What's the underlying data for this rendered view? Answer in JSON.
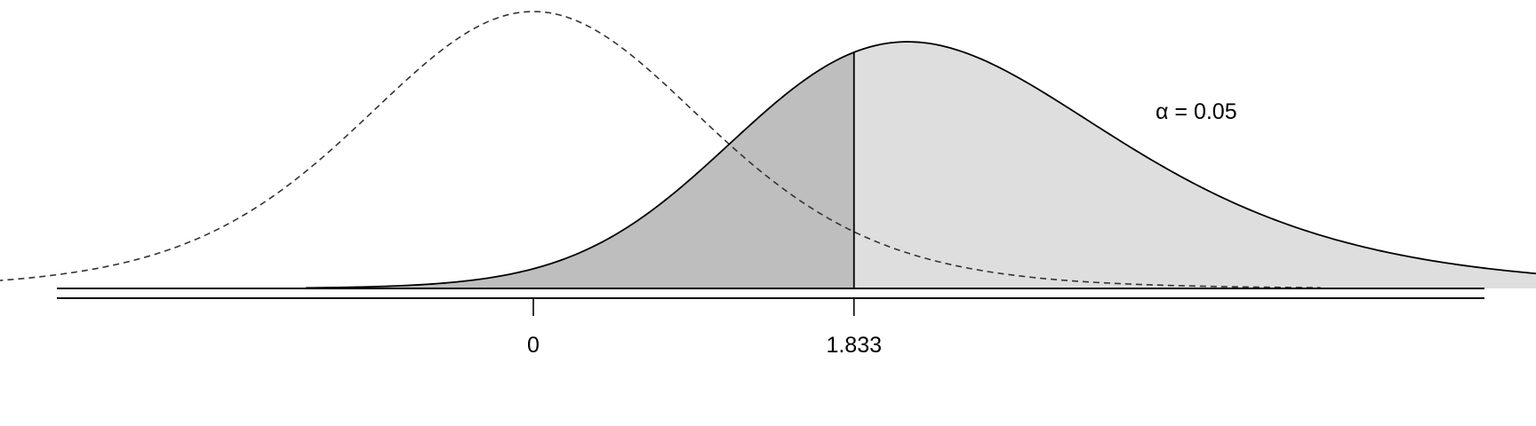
{
  "chart_data": {
    "type": "area",
    "title": "",
    "xlabel": "",
    "ylabel": "",
    "xlim": [
      -5.5,
      11
    ],
    "grid": false,
    "legend": "none",
    "annotation": {
      "symbol": "α",
      "equals": " = ",
      "value": "0.05",
      "text": "α = 0.05"
    },
    "critical_value": 1.833,
    "ticks": [
      {
        "value": 0,
        "label": "0"
      },
      {
        "value": 1.833,
        "label": "1.833"
      }
    ],
    "series": [
      {
        "role": "null",
        "distribution": "t",
        "df": 9,
        "ncp": 0,
        "linestyle": "dashed",
        "x_range": [
          -5.2,
          4.5
        ]
      },
      {
        "role": "alternative",
        "distribution": "t",
        "df": 9,
        "ncp": 2.3,
        "linestyle": "solid",
        "x_range": [
          -1.3,
          10
        ]
      }
    ],
    "shaded_regions": [
      {
        "series": "alternative",
        "from": -1.3,
        "to": 1.833,
        "color": "#bebebe"
      },
      {
        "series": "alternative",
        "from": 1.833,
        "to": 10,
        "color": "#dedede"
      }
    ]
  }
}
